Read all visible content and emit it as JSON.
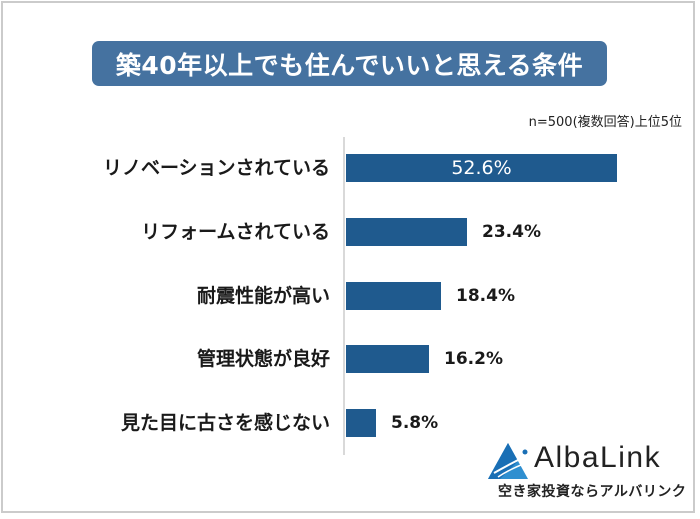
{
  "title": "築40年以上でも住んでいいと思える条件",
  "note": "n=500(複数回答)上位5位",
  "colors": {
    "bar": "#1f5a8e",
    "title_bg": "#4572a0",
    "axis": "#d9d9d9",
    "frame": "#cbcbcb"
  },
  "chart_data": {
    "type": "bar",
    "orientation": "horizontal",
    "title": "築40年以上でも住んでいいと思える条件",
    "subtitle": "n=500(複数回答)上位5位",
    "categories": [
      "リノベーションされている",
      "リフォームされている",
      "耐震性能が高い",
      "管理状態が良好",
      "見た目に古さを感じない"
    ],
    "values": [
      52.6,
      23.4,
      18.4,
      16.2,
      5.8
    ],
    "value_labels": [
      "52.6%",
      "23.4%",
      "18.4%",
      "16.2%",
      "5.8%"
    ],
    "unit": "%",
    "xlabel": "",
    "ylabel": "",
    "grid": false,
    "legend": null
  },
  "logo": {
    "name": "AlbaLink",
    "tagline": "空き家投資ならアルバリンク"
  }
}
